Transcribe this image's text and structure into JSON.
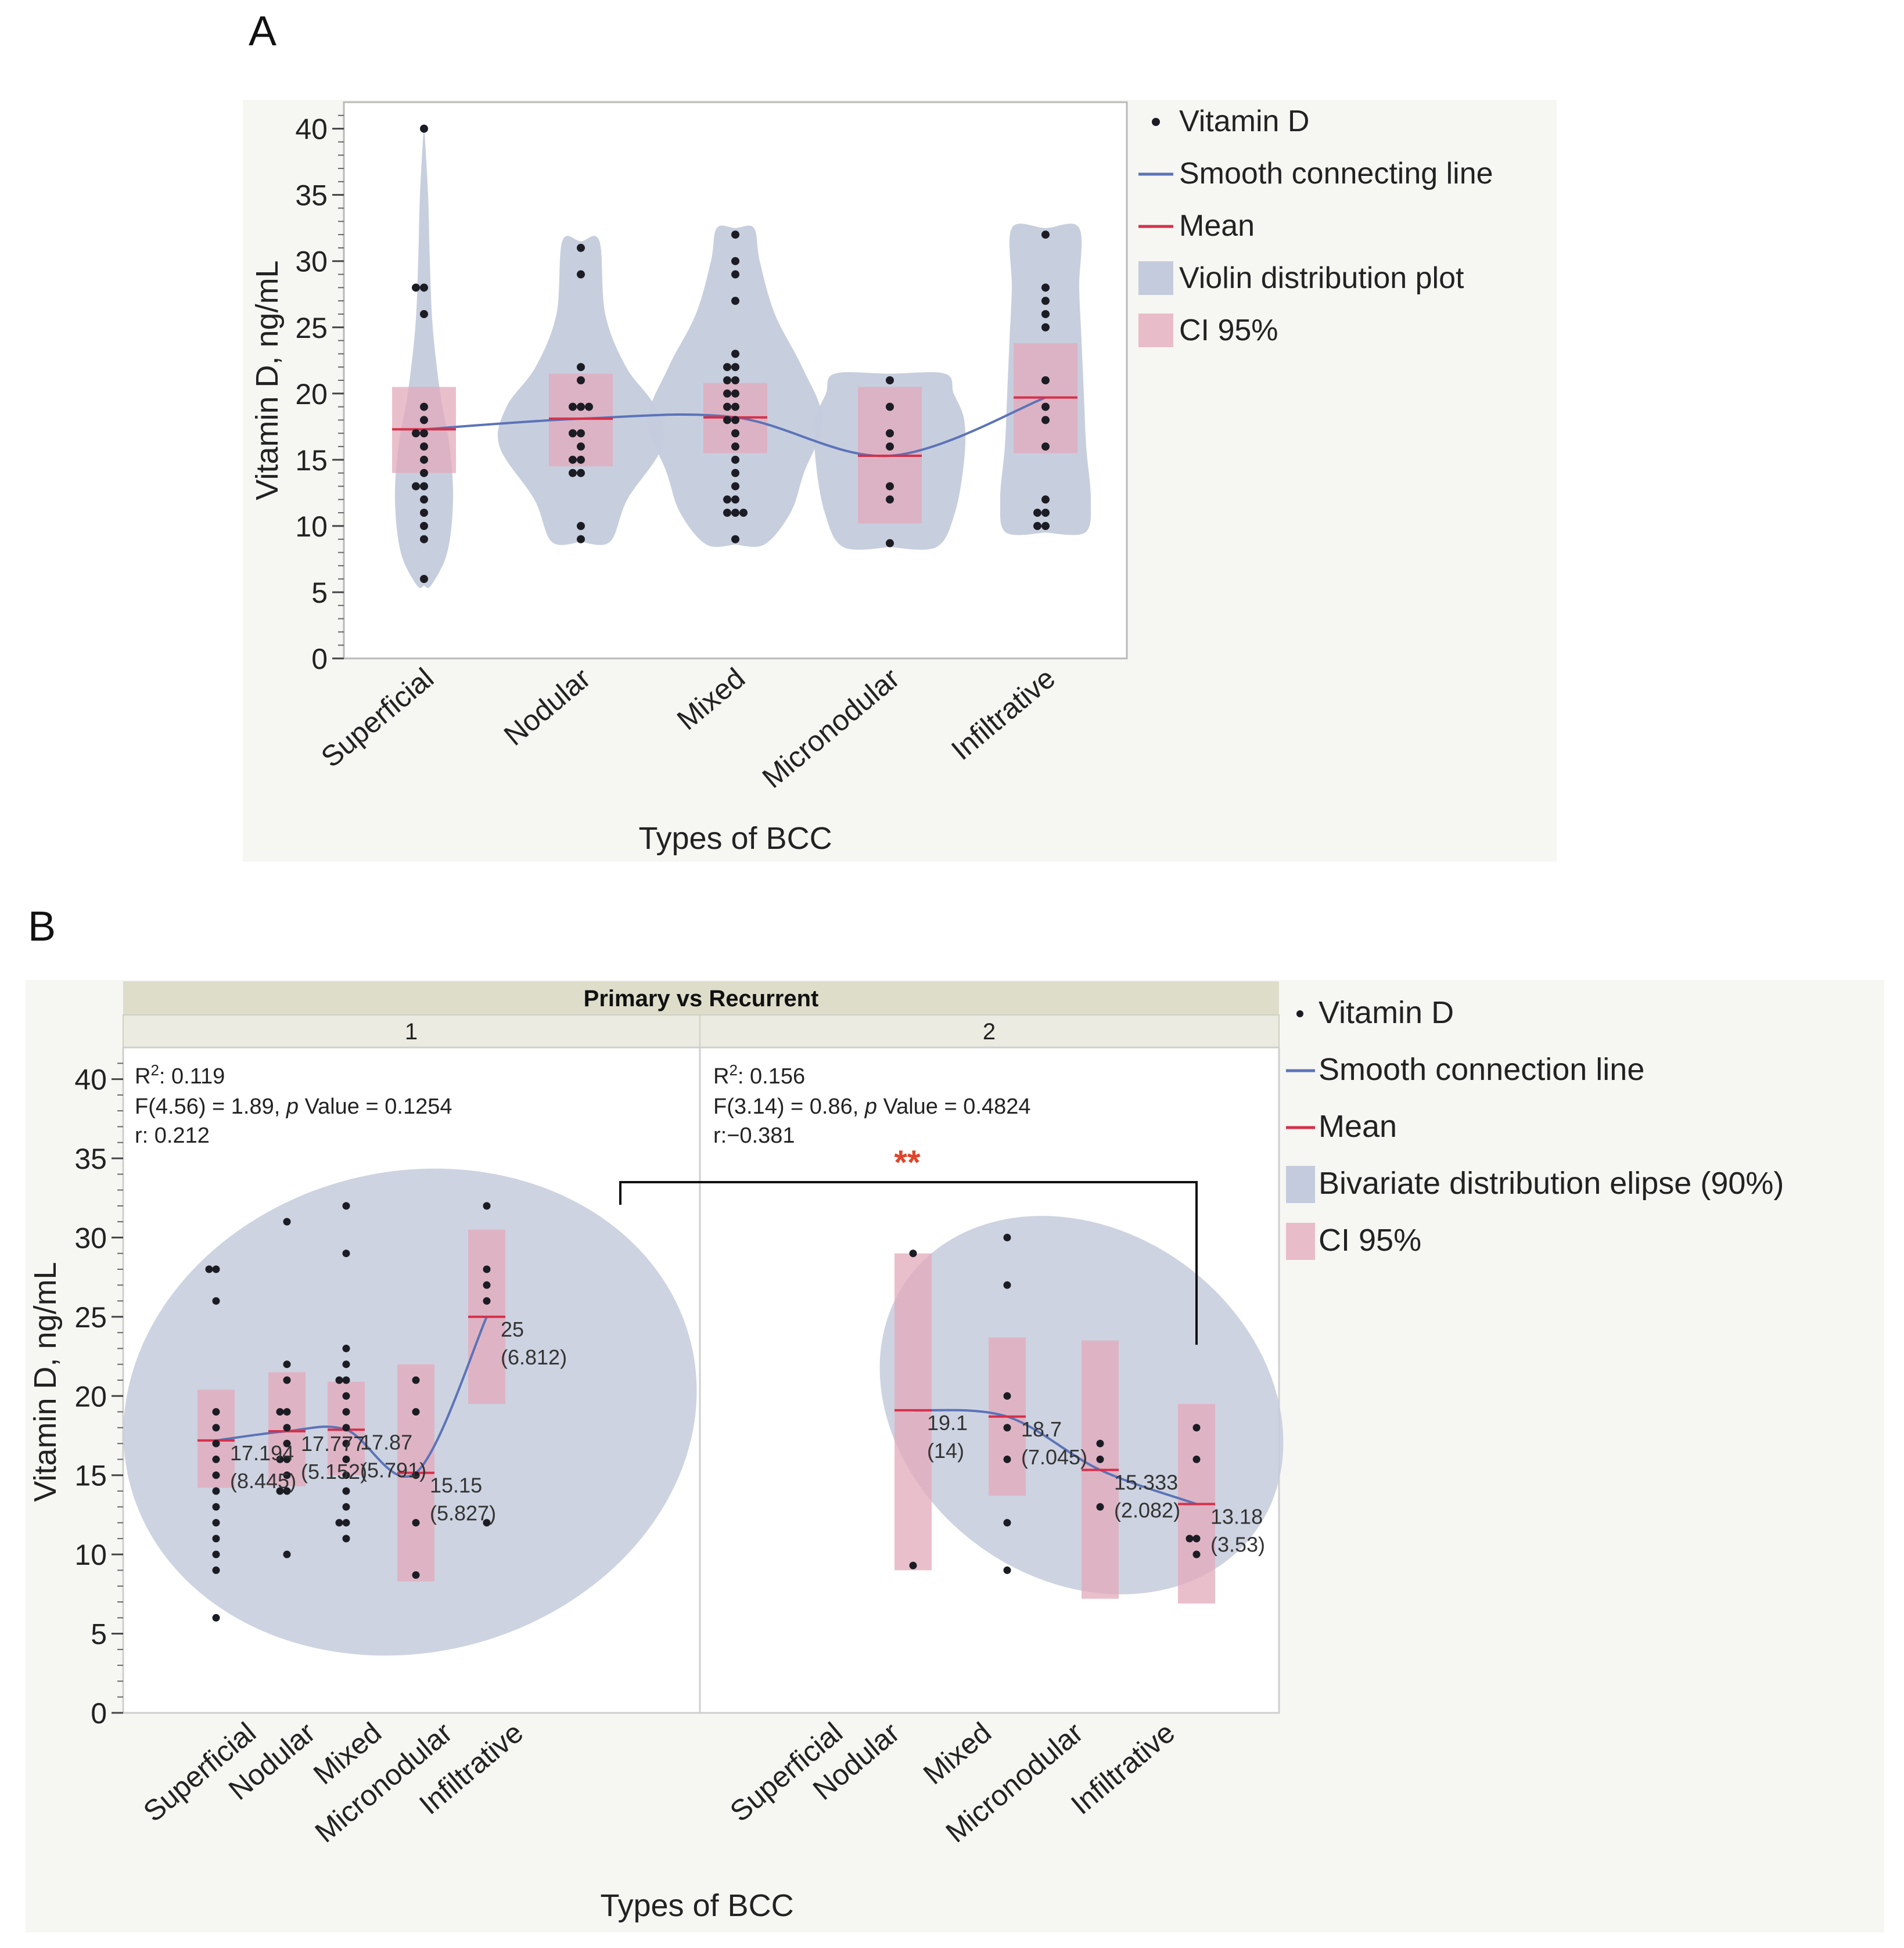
{
  "chart_data": [
    {
      "panel_label": "A",
      "type": "violin",
      "xlabel": "Types of BCC",
      "ylabel": "Vitamin D, ng/mL",
      "ylim": [
        0,
        42
      ],
      "yticks": [
        0,
        5,
        10,
        15,
        20,
        25,
        30,
        35,
        40
      ],
      "categories": [
        "Superficial",
        "Nodular",
        "Mixed",
        "Micronodular",
        "Infiltrative"
      ],
      "means": [
        17.3,
        18.1,
        18.2,
        15.3,
        19.7
      ],
      "ci95": [
        [
          14.0,
          20.5
        ],
        [
          14.5,
          21.5
        ],
        [
          15.5,
          20.8
        ],
        [
          10.2,
          20.5
        ],
        [
          15.5,
          23.8
        ]
      ],
      "violin_ranges": [
        [
          5.5,
          40.5
        ],
        [
          8.8,
          31.5
        ],
        [
          8.6,
          32.5
        ],
        [
          8.4,
          21.5
        ],
        [
          9.5,
          32.5
        ]
      ],
      "points": [
        [
          40,
          28,
          28,
          26,
          19,
          18,
          17,
          17,
          16,
          15,
          14,
          13,
          13,
          12,
          11,
          10,
          9,
          6
        ],
        [
          31,
          29,
          22,
          21,
          19,
          19,
          19,
          17,
          17,
          16,
          15,
          15,
          14,
          14,
          10,
          9
        ],
        [
          32,
          30,
          29,
          27,
          23,
          22,
          22,
          21,
          21,
          20,
          20,
          19,
          19,
          18,
          18,
          17,
          16,
          15,
          14,
          13,
          12,
          12,
          11,
          11,
          11,
          9
        ],
        [
          21,
          19,
          17,
          16,
          13,
          12,
          8.7
        ],
        [
          32,
          28,
          27,
          26,
          25,
          21,
          19,
          18,
          16,
          12,
          11,
          11,
          10,
          10
        ]
      ],
      "legend": [
        "Vitamin D",
        "Smooth connecting line",
        "Mean",
        "Violin distribution plot",
        "CI 95%"
      ],
      "colors": {
        "line": "#5b73b8",
        "mean": "#d6304a",
        "violin": "#c4cbdc",
        "ci": "#e3a9bb",
        "point": "#1c1c24",
        "panel_bg": "#f6f6f3"
      }
    },
    {
      "panel_label": "B",
      "type": "scatter",
      "group_header": "Primary vs Recurrent",
      "xlabel": "Types of BCC",
      "ylabel": "Vitamin D, ng/mL",
      "ylim": [
        0,
        42
      ],
      "yticks": [
        0,
        5,
        10,
        15,
        20,
        25,
        30,
        35,
        40
      ],
      "legend": [
        "Vitamin D",
        "Smooth connection line",
        "Mean",
        "Bivariate distribution elipse (90%)",
        "CI 95%"
      ],
      "significance": "**",
      "groups": [
        {
          "name": "1",
          "stats": {
            "r2_label": "R",
            "r2_sup": "2",
            "r2_value": ": 0.119",
            "f_text": "F(4.56) = 1.89, ",
            "p_label": "p",
            "p_text": " Value = 0.1254",
            "r_text": "r: 0.212"
          },
          "categories": [
            "Superficial",
            "Nodular",
            "Mixed",
            "Micronodular",
            "Infiltrative"
          ],
          "means": [
            17.194,
            17.777,
            17.87,
            15.15,
            25
          ],
          "sd_labels": [
            "(8.445)",
            "(5.152)",
            "(5.791)",
            "(5.827)",
            "(6.812)"
          ],
          "mean_labels": [
            "17.194",
            "17.777",
            "17.87",
            "15.15",
            "25"
          ],
          "ci95": [
            [
              14.2,
              20.4
            ],
            [
              14.3,
              21.5
            ],
            [
              15.0,
              20.9
            ],
            [
              8.3,
              22.0
            ],
            [
              19.5,
              30.5
            ]
          ],
          "points": [
            [
              28,
              28,
              26,
              19,
              18,
              17,
              16,
              15,
              14,
              13,
              12,
              11,
              10,
              9,
              6
            ],
            [
              31,
              22,
              21,
              19,
              19,
              18,
              17,
              16,
              16,
              15,
              14,
              14,
              10
            ],
            [
              32,
              29,
              23,
              22,
              21,
              21,
              20,
              19,
              18,
              17,
              16,
              15,
              14,
              13,
              12,
              12,
              11
            ],
            [
              21,
              19,
              15,
              12,
              8.7
            ],
            [
              32,
              28,
              27,
              26,
              12
            ]
          ]
        },
        {
          "name": "2",
          "stats": {
            "r2_label": "R",
            "r2_sup": "2",
            "r2_value": ": 0.156",
            "f_text": "F(3.14) = 0.86, ",
            "p_label": "p",
            "p_text": " Value = 0.4824",
            "r_text": "r:−0.381"
          },
          "categories": [
            "Superficial",
            "Nodular",
            "Mixed",
            "Micronodular",
            "Infiltrative"
          ],
          "means": [
            null,
            19.1,
            18.7,
            15.333,
            13.18
          ],
          "sd_labels": [
            null,
            "(14)",
            "(7.045)",
            "(2.082)",
            "(3.53)"
          ],
          "mean_labels": [
            null,
            "19.1",
            "18.7",
            "15.333",
            "13.18"
          ],
          "ci95": [
            null,
            [
              9.0,
              29.0
            ],
            [
              13.7,
              23.7
            ],
            [
              7.2,
              23.5
            ],
            [
              6.9,
              19.5
            ]
          ],
          "points": [
            [],
            [
              29,
              9.3
            ],
            [
              30,
              27,
              20,
              18,
              16,
              12,
              9
            ],
            [
              17,
              16,
              13
            ],
            [
              18,
              16,
              11,
              11,
              10
            ]
          ]
        }
      ],
      "colors": {
        "line": "#5b73b8",
        "mean": "#d6304a",
        "ellipse": "#c4cbdc",
        "ci": "#e3a9bb",
        "point": "#1c1c24",
        "header": "#deddca",
        "subheader": "#ecebe1",
        "sig": "#e0452b",
        "panel_bg": "#f6f6f3"
      }
    }
  ]
}
